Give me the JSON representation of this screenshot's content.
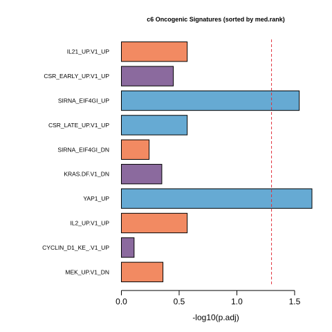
{
  "chart_data": {
    "type": "bar",
    "orientation": "horizontal",
    "title": "c6 Oncogenic Signatures (sorted by med.rank)",
    "xlabel": "-log10(p.adj)",
    "ylabel": "",
    "xlim": [
      0,
      1.65
    ],
    "xticks": [
      0.0,
      0.5,
      1.0,
      1.5
    ],
    "xtick_labels": [
      "0.0",
      "0.5",
      "1.0",
      "1.5"
    ],
    "threshold": 1.3,
    "threshold_color": "#e0303a",
    "grid": false,
    "categories": [
      "IL21_UP.V1_UP",
      "CSR_EARLY_UP.V1_UP",
      "SIRNA_EIF4GI_UP",
      "CSR_LATE_UP.V1_UP",
      "SIRNA_EIF4GI_DN",
      "KRAS.DF.V1_DN",
      "YAP1_UP",
      "IL2_UP.V1_UP",
      "CYCLIN_D1_KE_.V1_UP",
      "MEK_UP.V1_DN"
    ],
    "values": [
      0.57,
      0.45,
      1.54,
      0.57,
      0.24,
      0.35,
      1.65,
      0.57,
      0.11,
      0.36
    ],
    "colors": [
      "#f28a62",
      "#8b6a9e",
      "#66aad3",
      "#66aad3",
      "#f28a62",
      "#8b6a9e",
      "#66aad3",
      "#f28a62",
      "#8b6a9e",
      "#f28a62"
    ]
  }
}
